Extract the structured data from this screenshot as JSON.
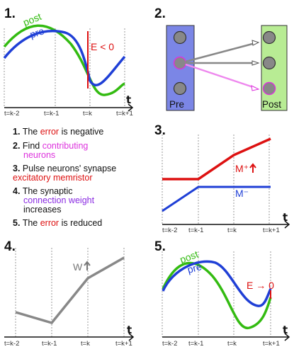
{
  "colors": {
    "post": "#33bb11",
    "pre": "#1f3fd6",
    "error": "#dd1111",
    "contributing": "#dd33dd",
    "weight": "#8a2be2",
    "weight_curve": "#888888",
    "pre_box": "#7b86e6",
    "post_box": "#b8ec94"
  },
  "panel1": {
    "number": "1.",
    "post_label": "post",
    "pre_label": "pre",
    "error_label": "E < 0"
  },
  "panel2": {
    "number": "2.",
    "pre_box_label": "Pre",
    "post_box_label": "Post"
  },
  "panel3": {
    "number": "3.",
    "m_plus_label": "M⁺",
    "m_minus_label": "M⁻"
  },
  "panel4": {
    "number": "4.",
    "w_label": "W"
  },
  "panel5": {
    "number": "5.",
    "post_label": "post",
    "pre_label": "pre",
    "error_label": "E → 0"
  },
  "axis": {
    "t_label": "t",
    "ticks": [
      "t=k-2",
      "t=k-1",
      "t=k",
      "t=k+1"
    ]
  },
  "steps": [
    {
      "num": "1.",
      "parts": [
        {
          "text": "The ",
          "color": "#111111"
        },
        {
          "text": "error",
          "color": "#dd1111"
        },
        {
          "text": " is negative",
          "color": "#111111"
        }
      ]
    },
    {
      "num": "2.",
      "parts": [
        {
          "text": "Find ",
          "color": "#111111"
        },
        {
          "text": "contributing",
          "color": "#dd33dd"
        }
      ],
      "line2": [
        {
          "text": "neurons",
          "color": "#dd33dd"
        }
      ]
    },
    {
      "num": "3.",
      "parts": [
        {
          "text": "Pulse neurons' synapse",
          "color": "#111111"
        }
      ],
      "line2": [
        {
          "text": "excitatory memristor",
          "color": "#dd1111"
        }
      ]
    },
    {
      "num": "4.",
      "parts": [
        {
          "text": "The synaptic",
          "color": "#111111"
        }
      ],
      "line2": [
        {
          "text": "connection weight",
          "color": "#8a2be2"
        }
      ],
      "line3": [
        {
          "text": "increases",
          "color": "#111111"
        }
      ]
    },
    {
      "num": "5.",
      "parts": [
        {
          "text": "The ",
          "color": "#111111"
        },
        {
          "text": "error",
          "color": "#dd1111"
        },
        {
          "text": " is reduced",
          "color": "#111111"
        }
      ]
    }
  ]
}
